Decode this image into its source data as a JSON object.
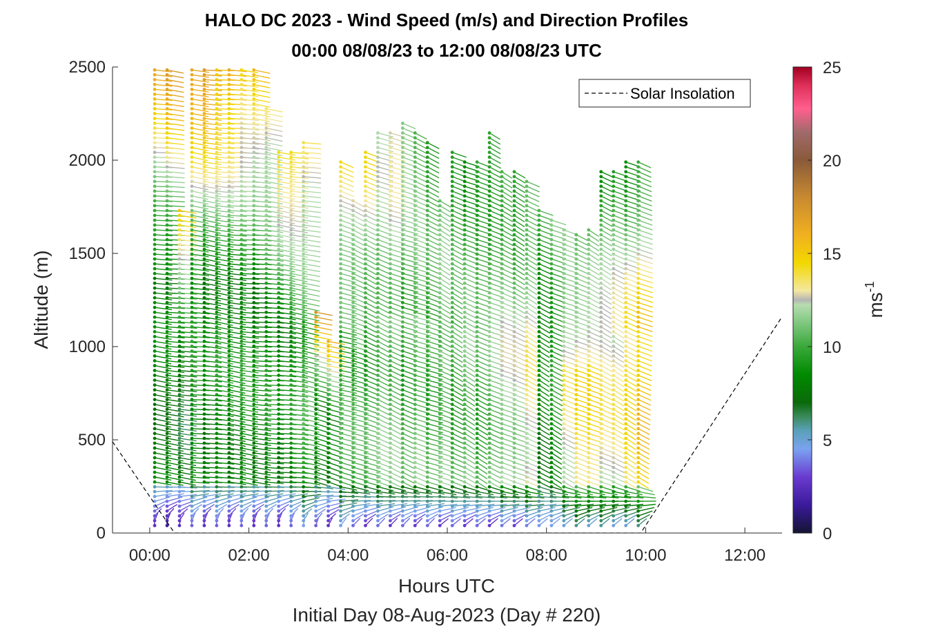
{
  "chart_data": {
    "type": "scatter",
    "title_line1": "HALO DC 2023 - Wind Speed (m/s) and Direction Profiles",
    "title_line2": "00:00 08/08/23 to 12:00 08/08/23  UTC",
    "xlabel": "Hours UTC",
    "xlabel2": "Initial Day 08-Aug-2023 (Day # 220)",
    "ylabel": "Altitude (m)",
    "x_ticks": [
      "00:00",
      "02:00",
      "04:00",
      "06:00",
      "08:00",
      "10:00",
      "12:00"
    ],
    "xlim_hours": [
      -0.75,
      12.75
    ],
    "y_ticks": [
      "0",
      "500",
      "1000",
      "1500",
      "2000",
      "2500"
    ],
    "ylim": [
      0,
      2500
    ],
    "colorbar": {
      "label": "ms",
      "label_superscript": "-1",
      "ticks": [
        "0",
        "5",
        "10",
        "15",
        "20",
        "25"
      ],
      "range": [
        0,
        25
      ]
    },
    "legend": {
      "entries": [
        "Solar Insolation"
      ],
      "position": "top-right"
    },
    "series": [
      {
        "name": "Solar Insolation",
        "style": "dashed",
        "color": "#000000",
        "hours": [
          -0.75,
          0.5,
          9.9,
          12.75
        ],
        "values_m": [
          490,
          0,
          0,
          1160
        ]
      }
    ],
    "profiles_note": "Wind barbs: per profile time (hours UTC), altitude top (m), speed levels (m/s) below/middle/top",
    "profiles": [
      {
        "h": 0.1,
        "top": 2500,
        "low": 2,
        "mid": 8,
        "upper": 16,
        "dir": 240
      },
      {
        "h": 0.35,
        "top": 2500,
        "low": 1,
        "mid": 8,
        "upper": 17,
        "dir": 240
      },
      {
        "h": 0.6,
        "top": 1750,
        "low": 2,
        "mid": 7,
        "upper": 16,
        "dir": 245
      },
      {
        "h": 0.85,
        "top": 2500,
        "low": 3,
        "mid": 9,
        "upper": 17,
        "dir": 240
      },
      {
        "h": 1.1,
        "top": 2500,
        "low": 2,
        "mid": 8,
        "upper": 18,
        "dir": 240
      },
      {
        "h": 1.35,
        "top": 2500,
        "low": 3,
        "mid": 9,
        "upper": 16,
        "dir": 240
      },
      {
        "h": 1.6,
        "top": 2500,
        "low": 2,
        "mid": 8,
        "upper": 17,
        "dir": 240
      },
      {
        "h": 1.85,
        "top": 2500,
        "low": 3,
        "mid": 9,
        "upper": 15,
        "dir": 240
      },
      {
        "h": 2.1,
        "top": 2500,
        "low": 2,
        "mid": 8,
        "upper": 16,
        "dir": 240
      },
      {
        "h": 2.35,
        "top": 2300,
        "low": 3,
        "mid": 9,
        "upper": 14,
        "dir": 240
      },
      {
        "h": 2.6,
        "top": 2050,
        "low": 2,
        "mid": 8,
        "upper": 15,
        "dir": 240
      },
      {
        "h": 2.85,
        "top": 2050,
        "low": 3,
        "mid": 9,
        "upper": 15,
        "dir": 240
      },
      {
        "h": 3.1,
        "top": 2100,
        "low": 4,
        "mid": 10,
        "upper": 14,
        "dir": 245
      },
      {
        "h": 3.35,
        "top": 1200,
        "low": 3,
        "mid": 8,
        "upper": 17,
        "dir": 250
      },
      {
        "h": 3.6,
        "top": 1050,
        "low": 2,
        "mid": 8,
        "upper": 16,
        "dir": 255
      },
      {
        "h": 3.85,
        "top": 2000,
        "low": 4,
        "mid": 10,
        "upper": 14,
        "dir": 260
      },
      {
        "h": 4.1,
        "top": 1800,
        "low": 3,
        "mid": 10,
        "upper": 13,
        "dir": 265
      },
      {
        "h": 4.35,
        "top": 2050,
        "low": 2,
        "mid": 10,
        "upper": 14,
        "dir": 265
      },
      {
        "h": 4.6,
        "top": 2150,
        "low": 3,
        "mid": 11,
        "upper": 12,
        "dir": 265
      },
      {
        "h": 4.85,
        "top": 2150,
        "low": 2,
        "mid": 11,
        "upper": 13,
        "dir": 265
      },
      {
        "h": 5.1,
        "top": 2200,
        "low": 3,
        "mid": 10,
        "upper": 12,
        "dir": 265
      },
      {
        "h": 5.35,
        "top": 2150,
        "low": 2,
        "mid": 11,
        "upper": 11,
        "dir": 265
      },
      {
        "h": 5.6,
        "top": 2100,
        "low": 3,
        "mid": 10,
        "upper": 10,
        "dir": 265
      },
      {
        "h": 5.85,
        "top": 1800,
        "low": 2,
        "mid": 11,
        "upper": 11,
        "dir": 270
      },
      {
        "h": 6.1,
        "top": 2050,
        "low": 3,
        "mid": 10,
        "upper": 10,
        "dir": 270
      },
      {
        "h": 6.35,
        "top": 2000,
        "low": 2,
        "mid": 11,
        "upper": 9,
        "dir": 270
      },
      {
        "h": 6.6,
        "top": 2000,
        "low": 3,
        "mid": 10,
        "upper": 10,
        "dir": 270
      },
      {
        "h": 6.85,
        "top": 2150,
        "low": 2,
        "mid": 11,
        "upper": 9,
        "dir": 270
      },
      {
        "h": 7.1,
        "top": 1950,
        "low": 3,
        "mid": 12,
        "upper": 10,
        "dir": 270
      },
      {
        "h": 7.35,
        "top": 1950,
        "low": 2,
        "mid": 12,
        "upper": 9,
        "dir": 270
      },
      {
        "h": 7.6,
        "top": 1900,
        "low": 3,
        "mid": 13,
        "upper": 10,
        "dir": 270
      },
      {
        "h": 7.85,
        "top": 1750,
        "low": 4,
        "mid": 8,
        "upper": 10,
        "dir": 270
      },
      {
        "h": 8.1,
        "top": 1700,
        "low": 4,
        "mid": 9,
        "upper": 11,
        "dir": 270
      },
      {
        "h": 8.35,
        "top": 1650,
        "low": 4,
        "mid": 13,
        "upper": 11,
        "dir": 270
      },
      {
        "h": 8.6,
        "top": 1600,
        "low": 5,
        "mid": 14,
        "upper": 10,
        "dir": 270
      },
      {
        "h": 8.85,
        "top": 1650,
        "low": 4,
        "mid": 14,
        "upper": 10,
        "dir": 270
      },
      {
        "h": 9.1,
        "top": 1950,
        "low": 5,
        "mid": 13,
        "upper": 9,
        "dir": 270
      },
      {
        "h": 9.35,
        "top": 1950,
        "low": 4,
        "mid": 13,
        "upper": 10,
        "dir": 270
      },
      {
        "h": 9.6,
        "top": 2000,
        "low": 4,
        "mid": 14,
        "upper": 9,
        "dir": 270
      },
      {
        "h": 9.85,
        "top": 2000,
        "low": 5,
        "mid": 15,
        "upper": 10,
        "dir": 270
      }
    ]
  }
}
